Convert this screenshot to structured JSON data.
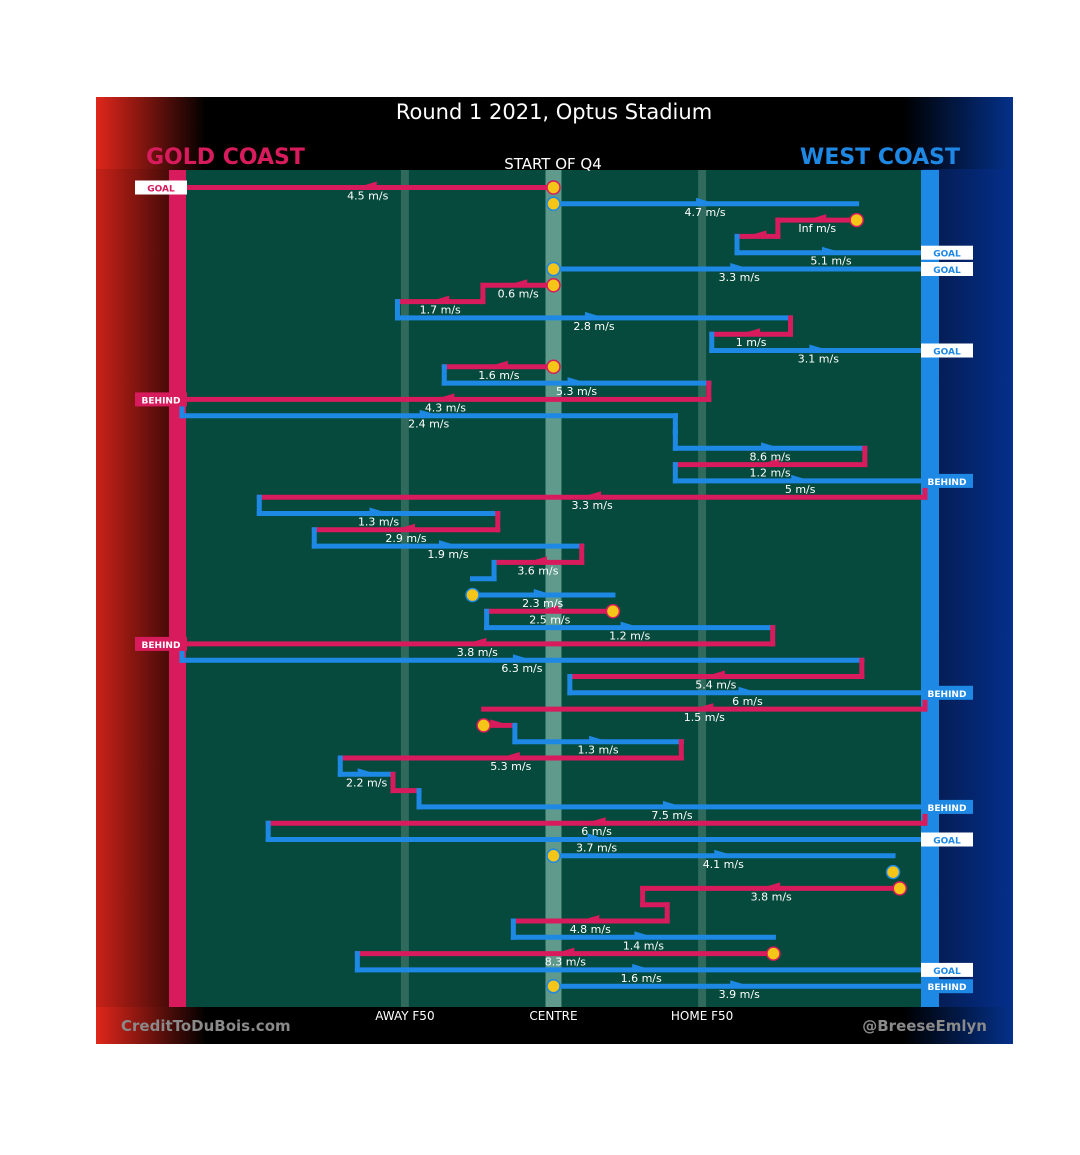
{
  "title": "Round 1 2021, Optus Stadium",
  "subtitle": "START OF Q4",
  "teams": {
    "left": "GOLD COAST",
    "right": "WEST COAST"
  },
  "colors": {
    "left": "#d81b5c",
    "right": "#1e88e5",
    "field": "#054a3c",
    "start_marker": "#f5c518"
  },
  "field_labels": [
    {
      "label": "AWAY F50",
      "x": 0.3
    },
    {
      "label": "CENTRE",
      "x": 0.5
    },
    {
      "label": "HOME F50",
      "x": 0.7
    }
  ],
  "credits": {
    "left": "CreditToDuBois.com",
    "right": "@BreeseEmlyn"
  },
  "chart_data": {
    "type": "line",
    "description_axis": "x = fraction of ground from Gold Coast goal (0) to West Coast goal (1); rows ordered top to bottom by time",
    "legs": [
      {
        "row": 1,
        "team": "gc",
        "from": 0.5,
        "to": 0.0,
        "label": "4.5 m/s",
        "start": true,
        "outcome": "GOAL"
      },
      {
        "row": 2,
        "team": "wc",
        "from": 0.5,
        "to": 0.908,
        "label": "4.7 m/s",
        "start": true
      },
      {
        "row": 3,
        "team": "gc",
        "from": 0.908,
        "to": 0.802,
        "label": "Inf m/s",
        "start": true
      },
      {
        "row": 4,
        "team": "gc",
        "from": 0.802,
        "to": 0.747,
        "label": ""
      },
      {
        "row": 5,
        "team": "wc",
        "from": 0.747,
        "to": 1.0,
        "label": "5.1 m/s",
        "outcome": "GOAL"
      },
      {
        "row": 6,
        "team": "wc",
        "from": 0.5,
        "to": 1.0,
        "label": "3.3 m/s",
        "start": true,
        "outcome": "GOAL"
      },
      {
        "row": 7,
        "team": "gc",
        "from": 0.5,
        "to": 0.405,
        "label": "0.6 m/s",
        "start": true
      },
      {
        "row": 8,
        "team": "gc",
        "from": 0.405,
        "to": 0.29,
        "label": "1.7 m/s"
      },
      {
        "row": 9,
        "team": "wc",
        "from": 0.29,
        "to": 0.819,
        "label": "2.8 m/s"
      },
      {
        "row": 10,
        "team": "gc",
        "from": 0.819,
        "to": 0.713,
        "label": "1 m/s"
      },
      {
        "row": 11,
        "team": "wc",
        "from": 0.713,
        "to": 1.0,
        "label": "3.1 m/s",
        "outcome": "GOAL"
      },
      {
        "row": 12,
        "team": "gc",
        "from": 0.5,
        "to": 0.353,
        "label": "1.6 m/s",
        "start": true
      },
      {
        "row": 13,
        "team": "wc",
        "from": 0.353,
        "to": 0.709,
        "label": "5.3 m/s"
      },
      {
        "row": 14,
        "team": "gc",
        "from": 0.709,
        "to": 0.0,
        "label": "4.3 m/s",
        "outcome": "BEHIND"
      },
      {
        "row": 15,
        "team": "wc",
        "from": 0.0,
        "to": 0.664,
        "label": "2.4 m/s"
      },
      {
        "row": 16,
        "team": "wc",
        "from": 0.664,
        "to": 0.664,
        "label": ""
      },
      {
        "row": 17,
        "team": "wc",
        "from": 0.664,
        "to": 0.919,
        "label": "8.6 m/s"
      },
      {
        "row": 18,
        "team": "gc",
        "from": 0.919,
        "to": 0.664,
        "label": "1.2 m/s"
      },
      {
        "row": 19,
        "team": "wc",
        "from": 0.664,
        "to": 1.0,
        "label": "5 m/s",
        "outcome": "BEHIND"
      },
      {
        "row": 20,
        "team": "gc",
        "from": 1.0,
        "to": 0.104,
        "label": "3.3 m/s"
      },
      {
        "row": 21,
        "team": "wc",
        "from": 0.104,
        "to": 0.425,
        "label": "1.3 m/s"
      },
      {
        "row": 22,
        "team": "gc",
        "from": 0.425,
        "to": 0.178,
        "label": "2.9 m/s"
      },
      {
        "row": 23,
        "team": "wc",
        "from": 0.178,
        "to": 0.538,
        "label": "1.9 m/s"
      },
      {
        "row": 24,
        "team": "gc",
        "from": 0.538,
        "to": 0.42,
        "label": "3.6 m/s"
      },
      {
        "row": 25,
        "team": "wc",
        "from": 0.42,
        "to": 0.391,
        "label": ""
      },
      {
        "row": 26,
        "team": "wc",
        "from": 0.391,
        "to": 0.58,
        "label": "2.3 m/s",
        "start": true
      },
      {
        "row": 27,
        "team": "gc",
        "from": 0.58,
        "to": 0.41,
        "label": "2.5 m/s",
        "start": true
      },
      {
        "row": 28,
        "team": "wc",
        "from": 0.41,
        "to": 0.795,
        "label": "1.2 m/s"
      },
      {
        "row": 29,
        "team": "gc",
        "from": 0.795,
        "to": 0.0,
        "label": "3.8 m/s",
        "outcome": "BEHIND"
      },
      {
        "row": 30,
        "team": "wc",
        "from": 0.0,
        "to": 0.915,
        "label": "6.3 m/s"
      },
      {
        "row": 31,
        "team": "gc",
        "from": 0.915,
        "to": 0.522,
        "label": "5.4 m/s"
      },
      {
        "row": 32,
        "team": "wc",
        "from": 0.522,
        "to": 1.0,
        "label": "6 m/s",
        "outcome": "BEHIND"
      },
      {
        "row": 33,
        "team": "gc",
        "from": 1.0,
        "to": 0.406,
        "label": "1.5 m/s"
      },
      {
        "row": 34,
        "team": "gc",
        "from": 0.406,
        "to": 0.448,
        "label": "",
        "start": true
      },
      {
        "row": 35,
        "team": "wc",
        "from": 0.448,
        "to": 0.672,
        "label": "1.3 m/s"
      },
      {
        "row": 36,
        "team": "gc",
        "from": 0.672,
        "to": 0.213,
        "label": "5.3 m/s"
      },
      {
        "row": 37,
        "team": "wc",
        "from": 0.213,
        "to": 0.284,
        "label": "2.2 m/s"
      },
      {
        "row": 38,
        "team": "gc",
        "from": 0.284,
        "to": 0.319,
        "label": ""
      },
      {
        "row": 39,
        "team": "wc",
        "from": 0.319,
        "to": 1.0,
        "label": "7.5 m/s",
        "outcome": "BEHIND"
      },
      {
        "row": 40,
        "team": "gc",
        "from": 1.0,
        "to": 0.116,
        "label": "6 m/s"
      },
      {
        "row": 41,
        "team": "wc",
        "from": 0.116,
        "to": 1.0,
        "label": "3.7 m/s",
        "outcome": "GOAL"
      },
      {
        "row": 42,
        "team": "wc",
        "from": 0.5,
        "to": 0.957,
        "label": "4.1 m/s",
        "start": true
      },
      {
        "row": 43,
        "team": "wc",
        "from": 0.957,
        "to": 0.957,
        "label": "",
        "start": true
      },
      {
        "row": 44,
        "team": "gc",
        "from": 0.966,
        "to": 0.62,
        "label": "3.8 m/s",
        "start": true
      },
      {
        "row": 45,
        "team": "gc",
        "from": 0.62,
        "to": 0.653,
        "label": ""
      },
      {
        "row": 46,
        "team": "gc",
        "from": 0.653,
        "to": 0.446,
        "label": "4.8 m/s"
      },
      {
        "row": 47,
        "team": "wc",
        "from": 0.446,
        "to": 0.796,
        "label": "1.4 m/s"
      },
      {
        "row": 48,
        "team": "gc",
        "from": 0.796,
        "to": 0.236,
        "label": "8.3 m/s",
        "start": true
      },
      {
        "row": 49,
        "team": "wc",
        "from": 0.236,
        "to": 1.0,
        "label": "1.6 m/s",
        "outcome": "GOAL"
      },
      {
        "row": 50,
        "team": "wc",
        "from": 0.5,
        "to": 1.0,
        "label": "3.9 m/s",
        "start": true,
        "outcome": "BEHIND"
      }
    ]
  }
}
